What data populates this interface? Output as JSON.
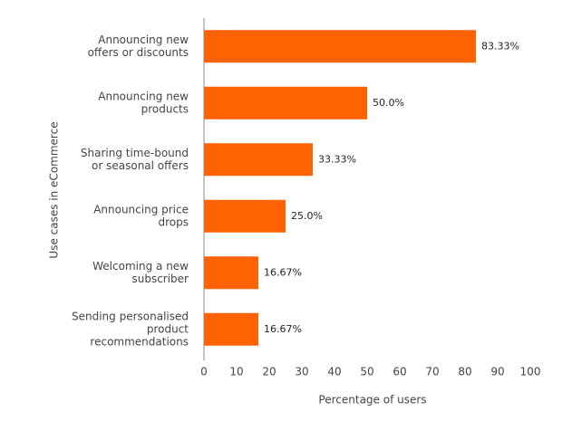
{
  "chart_data": {
    "type": "bar",
    "orientation": "horizontal",
    "categories": [
      [
        "Announcing new",
        "offers or discounts"
      ],
      [
        "Announcing  new",
        "products"
      ],
      [
        "Sharing time-bound",
        "or seasonal offers"
      ],
      [
        "Announcing price",
        "drops"
      ],
      [
        "Welcoming a new",
        "subscriber"
      ],
      [
        "Sending personalised",
        "product",
        "recommendations"
      ]
    ],
    "values": [
      83.33,
      50.0,
      33.33,
      25.0,
      16.67,
      16.67
    ],
    "value_labels": [
      "83.33%",
      "50.0%",
      "33.33%",
      "25.0%",
      "16.67%",
      "16.67%"
    ],
    "color": "#ff6200",
    "xlim": [
      0,
      100
    ],
    "xticks": [
      0,
      10,
      20,
      30,
      40,
      50,
      60,
      70,
      80,
      90,
      100
    ],
    "x_label": "Percentage of users",
    "y_label": "Use cases in eCommerce"
  }
}
